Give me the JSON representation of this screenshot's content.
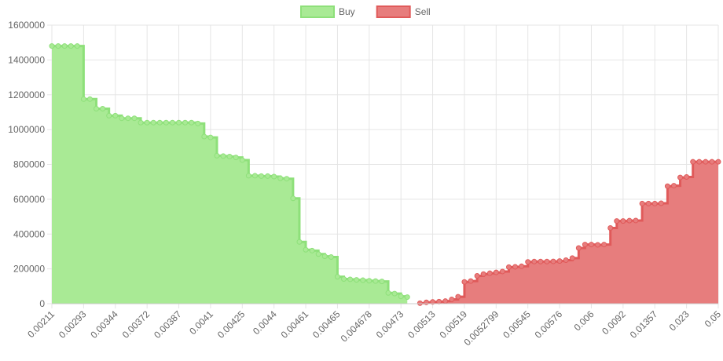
{
  "chart_data": {
    "type": "stepped-area",
    "categories": [
      "0.00211",
      null,
      null,
      null,
      null,
      "0.00293",
      null,
      null,
      null,
      null,
      "0.00344",
      null,
      null,
      null,
      null,
      "0.00372",
      null,
      null,
      null,
      null,
      "0.00387",
      null,
      null,
      null,
      null,
      "0.0041",
      null,
      null,
      null,
      null,
      "0.00425",
      null,
      null,
      null,
      null,
      "0.0044",
      null,
      null,
      null,
      null,
      "0.00461",
      null,
      null,
      null,
      null,
      "0.00465",
      null,
      null,
      null,
      null,
      "0.004678",
      null,
      null,
      null,
      null,
      "0.00473",
      null,
      null,
      null,
      null,
      "0.00513",
      null,
      null,
      null,
      null,
      "0.00519",
      null,
      null,
      null,
      null,
      "0.0052799",
      null,
      null,
      null,
      null,
      "0.00545",
      null,
      null,
      null,
      null,
      "0.00576",
      null,
      null,
      null,
      null,
      "0.006",
      null,
      null,
      null,
      null,
      "0.0092",
      null,
      null,
      null,
      null,
      "0.01357",
      null,
      null,
      null,
      null,
      "0.023",
      null,
      null,
      null,
      null,
      "0.05"
    ],
    "series": [
      {
        "name": "Buy",
        "color": "#8ee07a",
        "fill": "#a9ea95",
        "values": [
          1480000,
          1480000,
          1480000,
          1480000,
          1480000,
          1175000,
          1175000,
          1120000,
          1120000,
          1080000,
          1080000,
          1065000,
          1065000,
          1065000,
          1040000,
          1040000,
          1040000,
          1040000,
          1040000,
          1040000,
          1040000,
          1040000,
          1040000,
          1035000,
          960000,
          955000,
          850000,
          848000,
          845000,
          840000,
          825000,
          735000,
          735000,
          733000,
          733000,
          730000,
          720000,
          718000,
          605000,
          355000,
          310000,
          305000,
          285000,
          272000,
          268000,
          155000,
          142000,
          140000,
          137000,
          135000,
          132000,
          130000,
          128000,
          62000,
          58000,
          42000,
          38000,
          null,
          null,
          null,
          null,
          null,
          null,
          null,
          null,
          null,
          null,
          null,
          null,
          null,
          null,
          null,
          null,
          null,
          null,
          null,
          null,
          null,
          null,
          null,
          null,
          null,
          null,
          null,
          null,
          null,
          null,
          null,
          null,
          null,
          null,
          null,
          null,
          null,
          null,
          null,
          null,
          null,
          null,
          null,
          null,
          null,
          null,
          null,
          null,
          null
        ]
      },
      {
        "name": "Sell",
        "color": "#e05a5a",
        "fill": "#e77d7d",
        "values": [
          null,
          null,
          null,
          null,
          null,
          null,
          null,
          null,
          null,
          null,
          null,
          null,
          null,
          null,
          null,
          null,
          null,
          null,
          null,
          null,
          null,
          null,
          null,
          null,
          null,
          null,
          null,
          null,
          null,
          null,
          null,
          null,
          null,
          null,
          null,
          null,
          null,
          null,
          null,
          null,
          null,
          null,
          null,
          null,
          null,
          null,
          null,
          null,
          null,
          null,
          null,
          null,
          null,
          null,
          null,
          null,
          null,
          null,
          3000,
          8000,
          10000,
          12000,
          15000,
          25000,
          40000,
          125000,
          130000,
          160000,
          170000,
          175000,
          180000,
          185000,
          210000,
          212000,
          215000,
          240000,
          242000,
          242000,
          242000,
          243000,
          245000,
          250000,
          262000,
          320000,
          340000,
          340000,
          338000,
          340000,
          435000,
          475000,
          475000,
          477000,
          478000,
          575000,
          575000,
          575000,
          577000,
          675000,
          678000,
          725000,
          728000,
          815000,
          815000,
          815000,
          815000,
          815000
        ]
      }
    ],
    "ylim": [
      0,
      1600000
    ],
    "yticks": [
      0,
      200000,
      400000,
      600000,
      800000,
      1000000,
      1200000,
      1400000,
      1600000
    ],
    "grid": true,
    "legend": "top"
  }
}
